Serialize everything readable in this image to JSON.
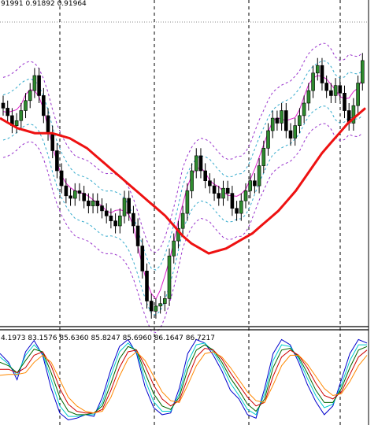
{
  "chart_data": [
    {
      "type": "candlestick",
      "panel": "price",
      "header_text": "91991 0.91892 0.91964",
      "candles_approx_close": [
        1.05,
        1.02,
        0.98,
        1.0,
        1.04,
        1.08,
        1.12,
        1.18,
        1.1,
        1.02,
        0.95,
        0.88,
        0.8,
        0.74,
        0.7,
        0.69,
        0.72,
        0.71,
        0.68,
        0.66,
        0.68,
        0.66,
        0.64,
        0.62,
        0.6,
        0.58,
        0.62,
        0.69,
        0.63,
        0.58,
        0.5,
        0.4,
        0.28,
        0.24,
        0.26,
        0.27,
        0.29,
        0.46,
        0.52,
        0.57,
        0.63,
        0.72,
        0.8,
        0.86,
        0.8,
        0.76,
        0.74,
        0.71,
        0.69,
        0.73,
        0.71,
        0.65,
        0.63,
        0.68,
        0.72,
        0.76,
        0.74,
        0.82,
        0.89,
        0.96,
        1.01,
        0.99,
        1.04,
        0.96,
        0.93,
        0.98,
        1.02,
        1.07,
        1.12,
        1.19,
        1.22,
        1.15,
        1.12,
        1.1,
        1.14,
        1.11,
        1.04,
        0.99,
        1.06,
        1.15,
        1.24
      ],
      "moving_average_thick_red": [
        1.01,
        0.99,
        0.97,
        0.96,
        0.95,
        0.95,
        0.95,
        0.94,
        0.93,
        0.91,
        0.89,
        0.86,
        0.83,
        0.8,
        0.77,
        0.74,
        0.71,
        0.68,
        0.65,
        0.62,
        0.58,
        0.54,
        0.51,
        0.49,
        0.47,
        0.48,
        0.49,
        0.51,
        0.53,
        0.55,
        0.58,
        0.61,
        0.64,
        0.68,
        0.72,
        0.77,
        0.82,
        0.87,
        0.91,
        0.95,
        0.99,
        1.02,
        1.05
      ],
      "envelope_bands": "purple dashed outer, cyan dashed inner, magenta middle",
      "vertical_grid_dashed": true,
      "ylim": [
        0.2,
        1.45
      ]
    },
    {
      "type": "line",
      "panel": "oscillator",
      "header_text": "4.1973 83.1576 85.6360 85.8247 85.6960 86.1647 86.7217",
      "series": [
        {
          "color": "#0000cc",
          "values": [
            80,
            70,
            50,
            82,
            95,
            78,
            40,
            12,
            4,
            6,
            10,
            8,
            30,
            62,
            88,
            96,
            80,
            42,
            18,
            10,
            12,
            40,
            80,
            96,
            92,
            78,
            60,
            38,
            28,
            10,
            6,
            40,
            80,
            96,
            90,
            70,
            45,
            25,
            10,
            20,
            50,
            80,
            96,
            92
          ]
        },
        {
          "color": "#00cccc",
          "values": [
            76,
            68,
            55,
            78,
            90,
            80,
            50,
            20,
            8,
            8,
            10,
            10,
            24,
            55,
            82,
            92,
            82,
            50,
            25,
            14,
            14,
            34,
            70,
            90,
            92,
            82,
            66,
            46,
            32,
            16,
            10,
            34,
            72,
            90,
            88,
            74,
            52,
            32,
            18,
            22,
            44,
            72,
            90,
            90
          ]
        },
        {
          "color": "#006600",
          "values": [
            70,
            66,
            58,
            72,
            85,
            82,
            58,
            30,
            14,
            10,
            10,
            12,
            20,
            46,
            74,
            88,
            84,
            58,
            34,
            20,
            16,
            30,
            62,
            84,
            90,
            84,
            70,
            52,
            38,
            22,
            14,
            28,
            64,
            84,
            86,
            76,
            58,
            38,
            24,
            24,
            40,
            64,
            84,
            88
          ]
        },
        {
          "color": "#cc0000",
          "values": [
            62,
            62,
            58,
            64,
            78,
            82,
            66,
            40,
            22,
            14,
            12,
            12,
            16,
            38,
            64,
            82,
            84,
            66,
            44,
            28,
            20,
            26,
            52,
            76,
            86,
            84,
            74,
            58,
            44,
            30,
            20,
            24,
            54,
            76,
            84,
            78,
            64,
            46,
            32,
            28,
            36,
            56,
            76,
            84
          ]
        },
        {
          "color": "#ff8800",
          "values": [
            55,
            56,
            56,
            58,
            70,
            78,
            70,
            50,
            30,
            20,
            14,
            12,
            14,
            30,
            54,
            74,
            82,
            72,
            54,
            36,
            26,
            24,
            44,
            66,
            80,
            82,
            76,
            64,
            50,
            36,
            26,
            24,
            44,
            66,
            78,
            78,
            68,
            54,
            40,
            32,
            34,
            48,
            66,
            78
          ]
        }
      ],
      "ylim": [
        0,
        100
      ]
    }
  ]
}
